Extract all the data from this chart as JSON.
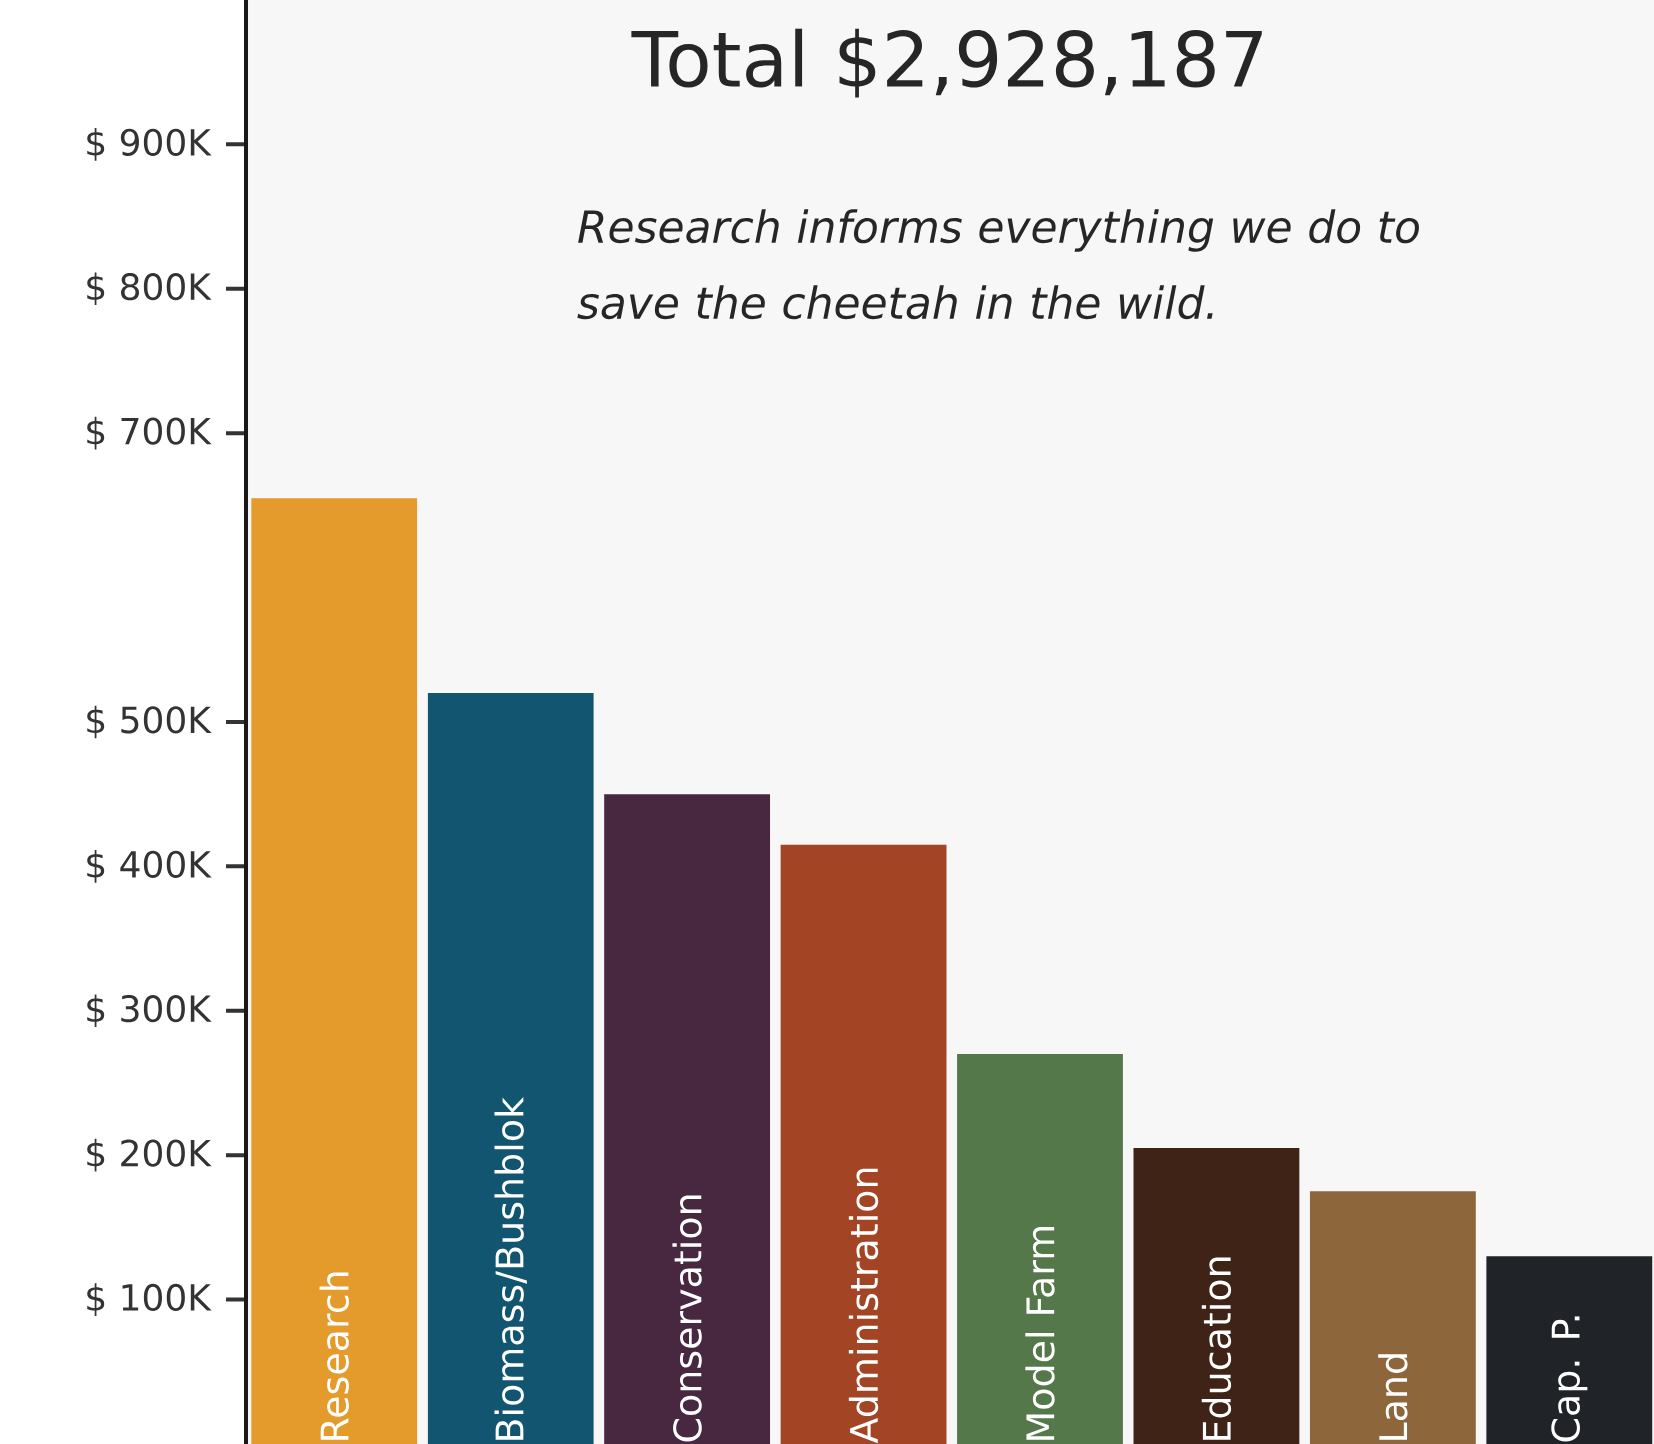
{
  "chart_data": {
    "type": "bar",
    "title": "Total $2,928,187",
    "annotations": [
      "*Research informs everything we do to save the cheetah in the wild.*"
    ],
    "categories": [
      "Research",
      "Biomass/Bushblok",
      "Conservation",
      "Administration",
      "Model Farm",
      "Education",
      "Land",
      "Cap. P."
    ],
    "values": [
      655000,
      520000,
      450000,
      415000,
      270000,
      205000,
      175000,
      130000
    ],
    "colors": [
      "#e59a2c",
      "#125570",
      "#472840",
      "#a34424",
      "#54784a",
      "#3e2316",
      "#8d663c",
      "#202428"
    ],
    "ylim": [
      0,
      1000000
    ],
    "yticks": [
      {
        "value": 100000,
        "label": "$ 100K"
      },
      {
        "value": 200000,
        "label": "$ 200K"
      },
      {
        "value": 300000,
        "label": "$ 300K"
      },
      {
        "value": 400000,
        "label": "$ 400K"
      },
      {
        "value": 500000,
        "label": "$ 500K"
      },
      {
        "value": 700000,
        "label": "$ 700K"
      },
      {
        "value": 800000,
        "label": "$ 800K"
      },
      {
        "value": 900000,
        "label": "$ 900K"
      }
    ]
  }
}
